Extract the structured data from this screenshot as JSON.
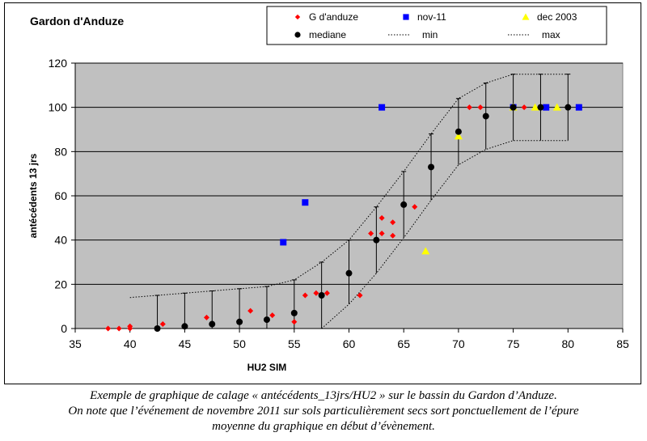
{
  "chart_data": {
    "type": "scatter",
    "title": "Gardon d'Anduze",
    "xlabel": "HU2 SIM",
    "ylabel": "antécédents 13 jrs",
    "xlim": [
      35,
      85
    ],
    "ylim": [
      0,
      120
    ],
    "xticks": [
      35,
      40,
      45,
      50,
      55,
      60,
      65,
      70,
      75,
      80,
      85
    ],
    "yticks": [
      0,
      20,
      40,
      60,
      80,
      100,
      120
    ],
    "grid": "horizontal",
    "legend_position": "top-right",
    "colors": {
      "plot_background": "#c0c0c0",
      "g_anduze": "#ff0000",
      "nov11": "#0000ff",
      "dec2003": "#ffff00",
      "mediane": "#000000",
      "envelope": "#000000"
    },
    "series": [
      {
        "name": "G d'anduze",
        "marker": "diamond",
        "points": [
          [
            38,
            0
          ],
          [
            39,
            0
          ],
          [
            40,
            0
          ],
          [
            40,
            1
          ],
          [
            43,
            2
          ],
          [
            47,
            5
          ],
          [
            51,
            8
          ],
          [
            53,
            6
          ],
          [
            55,
            3
          ],
          [
            56,
            15
          ],
          [
            57,
            16
          ],
          [
            58,
            16
          ],
          [
            61,
            15
          ],
          [
            62,
            43
          ],
          [
            63,
            43
          ],
          [
            63,
            50
          ],
          [
            64,
            48
          ],
          [
            64,
            42
          ],
          [
            66,
            55
          ],
          [
            71,
            100
          ],
          [
            72,
            100
          ],
          [
            76,
            100
          ],
          [
            78,
            100
          ]
        ]
      },
      {
        "name": "nov-11",
        "marker": "square",
        "points": [
          [
            54,
            39
          ],
          [
            56,
            57
          ],
          [
            63,
            100
          ],
          [
            75,
            100
          ],
          [
            78,
            100
          ],
          [
            81,
            100
          ]
        ]
      },
      {
        "name": "dec 2003",
        "marker": "triangle",
        "points": [
          [
            67,
            35
          ],
          [
            70,
            87
          ],
          [
            75,
            100
          ],
          [
            77,
            100
          ],
          [
            79,
            100
          ]
        ]
      },
      {
        "name": "mediane",
        "marker": "circle",
        "points": [
          [
            42.5,
            0
          ],
          [
            45,
            1
          ],
          [
            47.5,
            2
          ],
          [
            50,
            3
          ],
          [
            52.5,
            4
          ],
          [
            55,
            7
          ],
          [
            57.5,
            15
          ],
          [
            60,
            25
          ],
          [
            62.5,
            40
          ],
          [
            65,
            56
          ],
          [
            67.5,
            73
          ],
          [
            70,
            89
          ],
          [
            72.5,
            96
          ],
          [
            75,
            100
          ],
          [
            77.5,
            100
          ],
          [
            80,
            100
          ]
        ]
      },
      {
        "name": "min",
        "line": "dotted",
        "points": [
          [
            57.5,
            0
          ],
          [
            60,
            11
          ],
          [
            62.5,
            25
          ],
          [
            65,
            41
          ],
          [
            67.5,
            58
          ],
          [
            70,
            74
          ],
          [
            72.5,
            81
          ],
          [
            75,
            85
          ],
          [
            77.5,
            85
          ],
          [
            80,
            85
          ]
        ]
      },
      {
        "name": "max",
        "line": "dotted",
        "points": [
          [
            40,
            14
          ],
          [
            42.5,
            15
          ],
          [
            45,
            16
          ],
          [
            47.5,
            17
          ],
          [
            50,
            18
          ],
          [
            52.5,
            19
          ],
          [
            55,
            22
          ],
          [
            57.5,
            30
          ],
          [
            60,
            40
          ],
          [
            62.5,
            55
          ],
          [
            65,
            71
          ],
          [
            67.5,
            88
          ],
          [
            70,
            104
          ],
          [
            72.5,
            111
          ],
          [
            75,
            115
          ],
          [
            77.5,
            115
          ],
          [
            80,
            115
          ]
        ]
      }
    ],
    "error_bars": [
      {
        "x": 42.5,
        "low": 0,
        "high": 15
      },
      {
        "x": 45,
        "low": 0,
        "high": 16
      },
      {
        "x": 47.5,
        "low": 0,
        "high": 17
      },
      {
        "x": 50,
        "low": 0,
        "high": 18
      },
      {
        "x": 52.5,
        "low": 0,
        "high": 19
      },
      {
        "x": 55,
        "low": 0,
        "high": 22
      },
      {
        "x": 57.5,
        "low": 0,
        "high": 30
      },
      {
        "x": 60,
        "low": 11,
        "high": 40
      },
      {
        "x": 62.5,
        "low": 25,
        "high": 55
      },
      {
        "x": 65,
        "low": 41,
        "high": 71
      },
      {
        "x": 67.5,
        "low": 58,
        "high": 88
      },
      {
        "x": 70,
        "low": 74,
        "high": 104
      },
      {
        "x": 72.5,
        "low": 81,
        "high": 111
      },
      {
        "x": 75,
        "low": 85,
        "high": 115
      },
      {
        "x": 77.5,
        "low": 85,
        "high": 115
      },
      {
        "x": 80,
        "low": 85,
        "high": 115
      }
    ]
  },
  "caption": {
    "line1": "Exemple de graphique de calage « antécédents_13jrs/HU2 » sur le bassin du Gardon d’Anduze.",
    "line2": "On note que l’événement de novembre 2011 sur sols particulièrement secs sort ponctuellement de l’épure",
    "line3": "moyenne du graphique en début d’évènement."
  }
}
